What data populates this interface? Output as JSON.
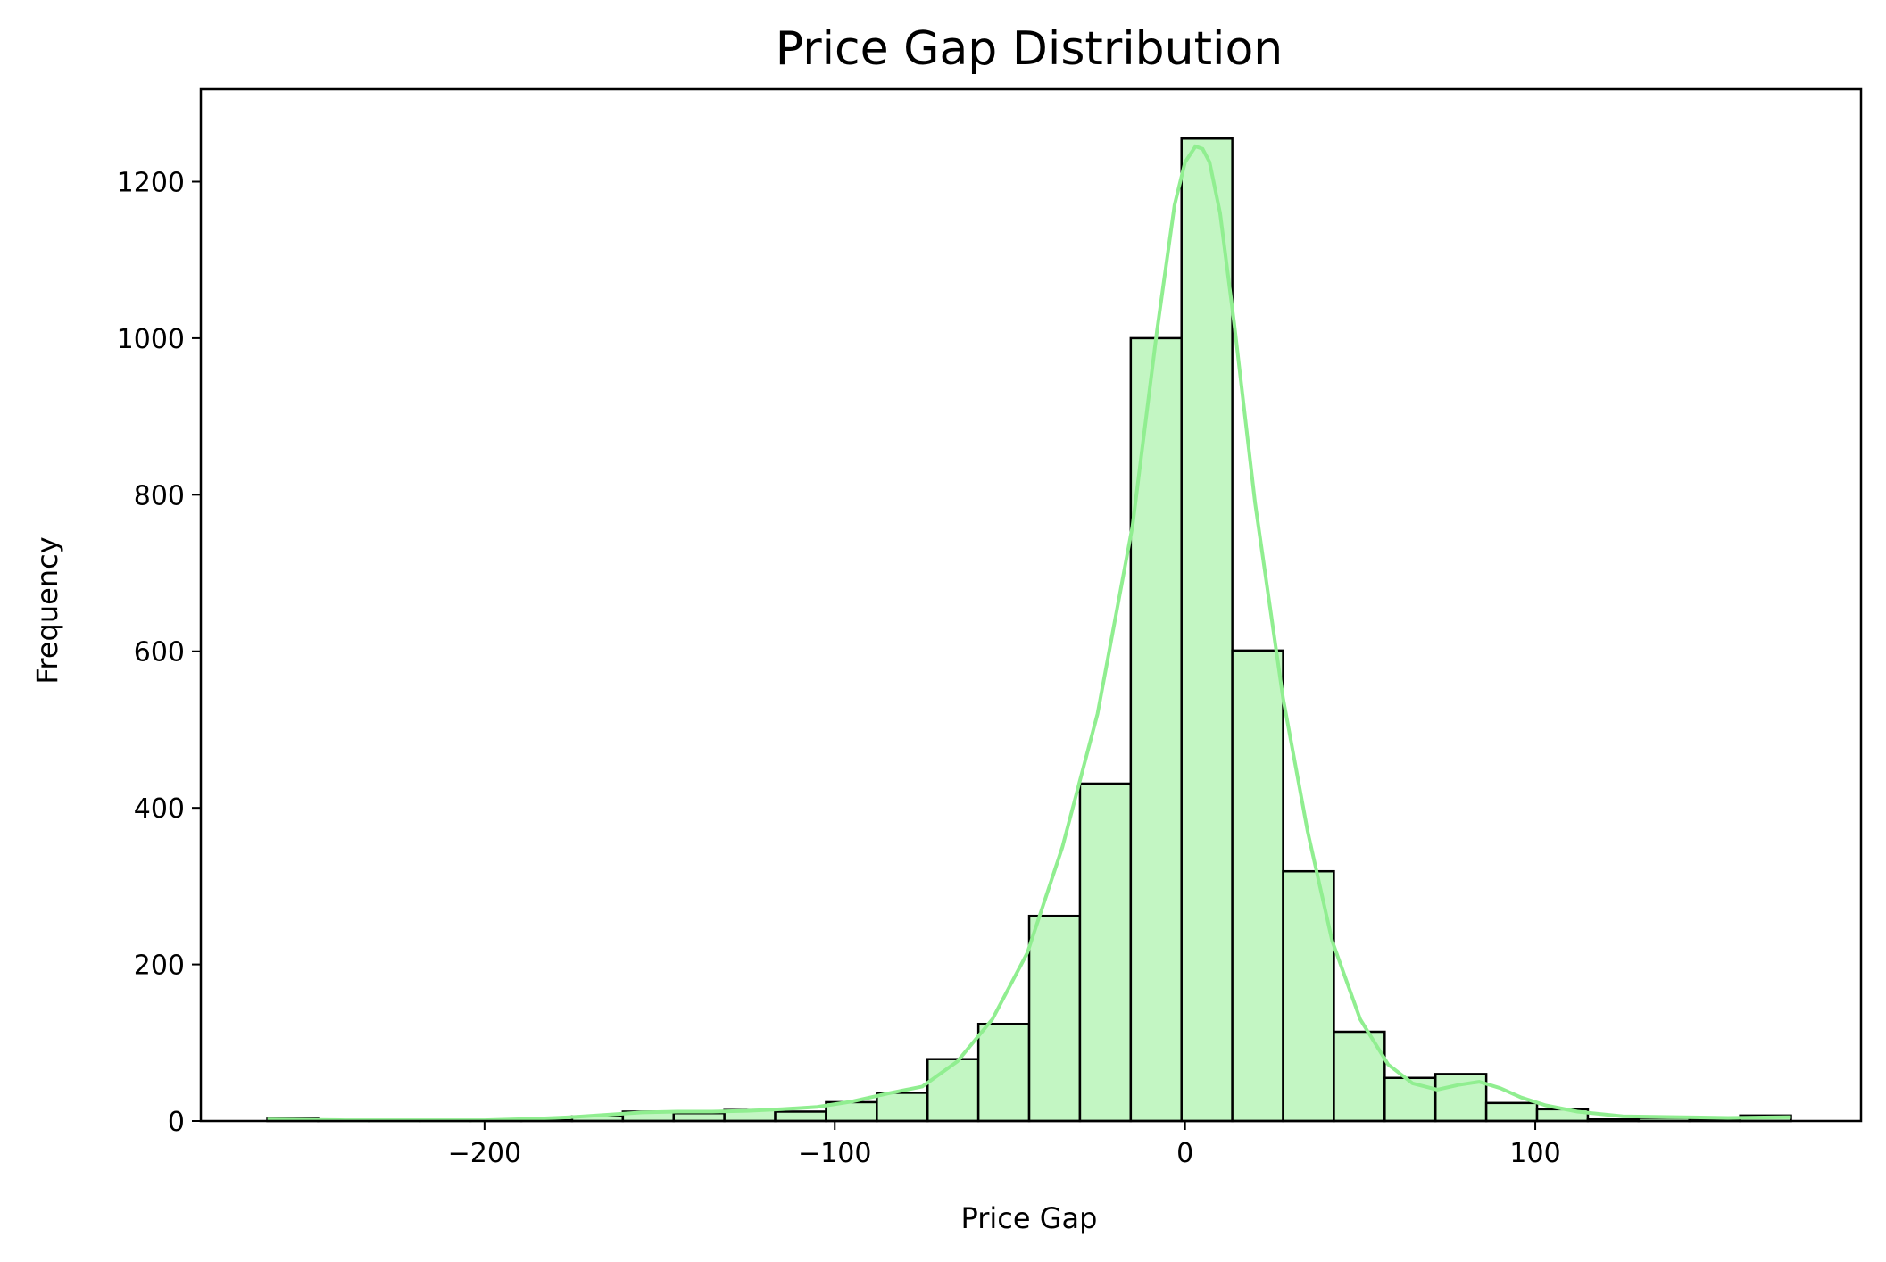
{
  "chart_data": {
    "type": "bar",
    "title": "Price Gap Distribution",
    "xlabel": "Price Gap",
    "ylabel": "Frequency",
    "xlim": [
      -281,
      193
    ],
    "ylim": [
      0,
      1318
    ],
    "xticks": [
      -200,
      -100,
      0,
      100
    ],
    "xtick_labels": [
      "−200",
      "−100",
      "0",
      "100"
    ],
    "yticks": [
      0,
      200,
      400,
      600,
      800,
      1000,
      1200
    ],
    "ytick_labels": [
      "0",
      "200",
      "400",
      "600",
      "800",
      "1000",
      "1200"
    ],
    "bin_edges": [
      -262,
      -247.5,
      -233,
      -218.5,
      -204,
      -189.5,
      -175,
      -160.5,
      -146,
      -131.5,
      -117,
      -102.5,
      -88,
      -73.5,
      -59,
      -44.5,
      -30,
      -15.5,
      -1,
      13.5,
      28,
      42.5,
      57,
      71.5,
      86,
      100.5,
      115,
      129.5,
      144,
      158.5,
      173
    ],
    "counts": [
      3,
      1,
      1,
      1,
      1,
      1,
      6,
      12,
      10,
      14,
      12,
      24,
      36,
      79,
      124,
      262,
      431,
      1000,
      1255,
      601,
      319,
      114,
      55,
      60,
      23,
      15,
      2,
      4,
      3,
      7
    ],
    "kde": {
      "x": [
        -262,
        -240,
        -220,
        -200,
        -185,
        -175,
        -165,
        -155,
        -145,
        -135,
        -125,
        -115,
        -105,
        -95,
        -85,
        -75,
        -65,
        -55,
        -45,
        -35,
        -25,
        -15,
        -8,
        -3,
        0,
        3,
        5,
        7,
        10,
        14,
        20,
        28,
        35,
        42,
        50,
        58,
        65,
        72,
        78,
        84,
        90,
        96,
        103,
        112,
        125,
        140,
        155,
        173
      ],
      "y": [
        2,
        1,
        1,
        1,
        3,
        5,
        8,
        11,
        12,
        12,
        13,
        15,
        18,
        25,
        35,
        44,
        76,
        130,
        215,
        350,
        520,
        760,
        1010,
        1170,
        1225,
        1245,
        1242,
        1225,
        1160,
        1020,
        790,
        540,
        370,
        230,
        130,
        72,
        48,
        40,
        46,
        50,
        42,
        30,
        20,
        12,
        6,
        5,
        4,
        5
      ]
    },
    "colors": {
      "bar_fill": "#c3f6c3",
      "bar_edge": "#000000",
      "kde_line": "#90ee90"
    },
    "grid": false,
    "legend": "none"
  }
}
